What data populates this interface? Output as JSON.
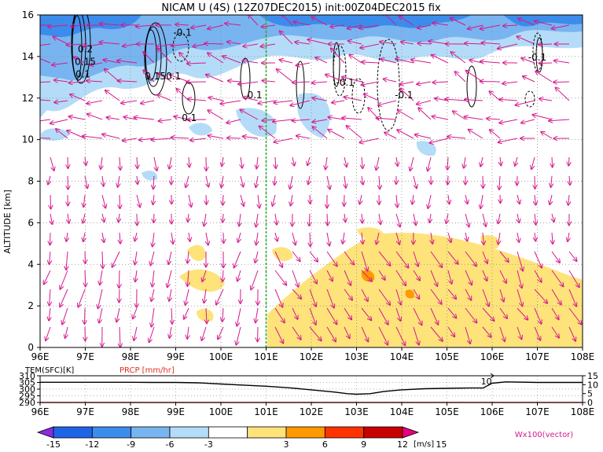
{
  "chart_data": [
    {
      "type": "heatmap",
      "title": "NICAM U (4S) (12Z07DEC2015) init:00Z04DEC2015 fix",
      "ylabel": "ALTITUDE [km]",
      "xlim": [
        96,
        108
      ],
      "ylim": [
        0,
        16
      ],
      "x_ticks": [
        "96E",
        "97E",
        "98E",
        "99E",
        "100E",
        "101E",
        "102E",
        "103E",
        "104E",
        "105E",
        "106E",
        "107E",
        "108E"
      ],
      "y_ticks": [
        "0",
        "2",
        "4",
        "6",
        "8",
        "10",
        "12",
        "14",
        "16"
      ],
      "grid": true,
      "marker_line_x": 101,
      "contour_labels": [
        {
          "text": "0.2",
          "x": 97.0,
          "y": 14.2
        },
        {
          "text": "0.15",
          "x": 97.0,
          "y": 13.6
        },
        {
          "text": "0.1",
          "x": 96.95,
          "y": 13.0
        },
        {
          "text": "0.15",
          "x": 98.55,
          "y": 12.9
        },
        {
          "text": "0.1",
          "x": 98.95,
          "y": 12.9
        },
        {
          "text": "-0.1",
          "x": 99.15,
          "y": 15.0
        },
        {
          "text": "0.1",
          "x": 99.3,
          "y": 10.9
        },
        {
          "text": "0.1",
          "x": 100.75,
          "y": 12.0
        },
        {
          "text": "-0.1",
          "x": 102.75,
          "y": 12.6
        },
        {
          "text": "-0.1",
          "x": 104.05,
          "y": 12.0
        },
        {
          "text": "-0.1",
          "x": 107.0,
          "y": 13.8
        }
      ],
      "colorbar": {
        "ticks": [
          "-15",
          "-12",
          "-9",
          "-6",
          "-3",
          "3",
          "6",
          "9",
          "12",
          "15"
        ],
        "units": "[m/s]",
        "colors": [
          "#8a2be2",
          "#1e64e6",
          "#3c8ceb",
          "#78b4f0",
          "#b4dcf8",
          "#ffffff",
          "#fde37a",
          "#ff9900",
          "#ff3300",
          "#c80000",
          "#e6007e"
        ]
      },
      "vector_label": "Wx100(vector)"
    },
    {
      "type": "line",
      "legend_left": "TEM(SFC)[K]",
      "legend_right": "PRCP [mm/hr]",
      "xlim": [
        96,
        108
      ],
      "x_ticks": [
        "96E",
        "97E",
        "98E",
        "99E",
        "100E",
        "101E",
        "102E",
        "103E",
        "104E",
        "105E",
        "106E",
        "107E",
        "108E"
      ],
      "left_axis_ticks": [
        "310",
        "305",
        "300",
        "295",
        "290"
      ],
      "right_axis_ticks": [
        "15",
        "10",
        "5",
        "0"
      ],
      "series": [
        {
          "name": "TEM(SFC)[K]",
          "x": [
            96,
            96.5,
            97,
            97.5,
            98,
            98.5,
            99,
            99.5,
            100,
            100.5,
            101,
            101.5,
            102,
            102.5,
            102.8,
            103.0,
            103.3,
            103.6,
            104.0,
            104.5,
            105.0,
            105.5,
            105.8,
            106.0,
            106.3,
            107.0,
            107.5,
            108
          ],
          "values": [
            305.1,
            305.1,
            305.1,
            305.1,
            305.1,
            305.0,
            305.0,
            304.7,
            303.8,
            303.0,
            302.2,
            301.0,
            299.5,
            297.8,
            296.6,
            296.2,
            296.6,
            298.2,
            299.5,
            300.3,
            300.6,
            300.8,
            300.8,
            304.4,
            305.4,
            305.0,
            305.0,
            305.0
          ]
        },
        {
          "name": "PRCP [mm/hr]",
          "x": [
            96,
            97,
            98,
            99,
            100,
            101,
            102,
            103,
            104,
            105,
            106,
            107,
            108
          ],
          "values": [
            0,
            0,
            0,
            0,
            0,
            0,
            0,
            0,
            0,
            0,
            0,
            0,
            0
          ]
        }
      ],
      "annotation": "10"
    }
  ]
}
